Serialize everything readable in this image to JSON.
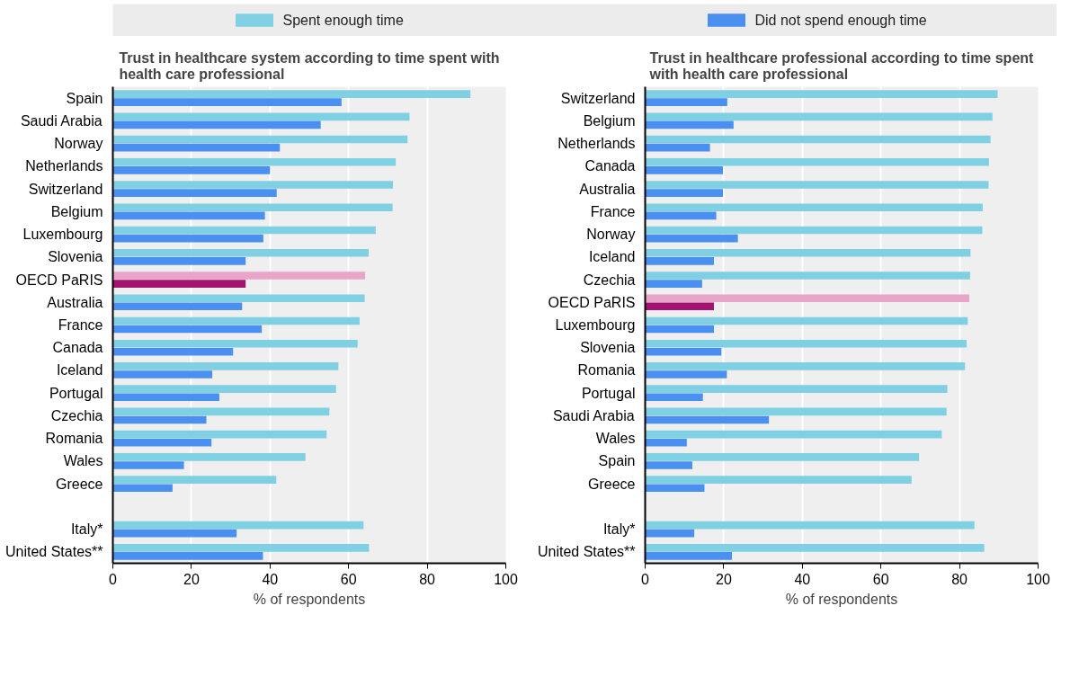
{
  "chart_data": [
    {
      "type": "bar",
      "orientation": "horizontal",
      "title": "Trust in healthcare system according to time spent with health care professional",
      "xlabel": "% of respondents",
      "xlim": [
        0,
        100
      ],
      "xticks": [
        0,
        20,
        40,
        60,
        80,
        100
      ],
      "grid": "x",
      "legend": "top",
      "categories": [
        "Spain",
        "Saudi Arabia",
        "Norway",
        "Netherlands",
        "Switzerland",
        "Belgium",
        "Luxembourg",
        "Slovenia",
        "OECD PaRIS",
        "Australia",
        "France",
        "Canada",
        "Iceland",
        "Portugal",
        "Czechia",
        "Romania",
        "Wales",
        "Greece",
        null,
        "Italy*",
        "United States**"
      ],
      "series": [
        {
          "name": "Spent enough time",
          "color": "#7fd0e3",
          "colors": [
            "#7fd0e3",
            "#7fd0e3",
            "#7fd0e3",
            "#7fd0e3",
            "#7fd0e3",
            "#7fd0e3",
            "#7fd0e3",
            "#7fd0e3",
            "#e9a5c9",
            "#7fd0e3",
            "#7fd0e3",
            "#7fd0e3",
            "#7fd0e3",
            "#7fd0e3",
            "#7fd0e3",
            "#7fd0e3",
            "#7fd0e3",
            "#7fd0e3",
            "#7fd0e3",
            "#7fd0e3",
            "#7fd0e3"
          ],
          "values": [
            91.0,
            75.5,
            75.0,
            72.0,
            71.3,
            71.2,
            66.9,
            65.1,
            64.2,
            64.1,
            62.8,
            62.3,
            57.4,
            56.8,
            55.1,
            54.4,
            49.0,
            41.6,
            null,
            63.8,
            65.2
          ]
        },
        {
          "name": "Did not spend enough time",
          "color": "#4a90f0",
          "colors": [
            "#4a90f0",
            "#4a90f0",
            "#4a90f0",
            "#4a90f0",
            "#4a90f0",
            "#4a90f0",
            "#4a90f0",
            "#4a90f0",
            "#a3136f",
            "#4a90f0",
            "#4a90f0",
            "#4a90f0",
            "#4a90f0",
            "#4a90f0",
            "#4a90f0",
            "#4a90f0",
            "#4a90f0",
            "#4a90f0",
            "#4a90f0",
            "#4a90f0",
            "#4a90f0"
          ],
          "values": [
            58.2,
            52.9,
            42.5,
            40.0,
            41.7,
            38.7,
            38.3,
            33.8,
            33.8,
            32.9,
            37.9,
            30.6,
            25.3,
            27.1,
            23.8,
            25.1,
            18.1,
            15.2,
            null,
            31.5,
            38.2
          ]
        }
      ]
    },
    {
      "type": "bar",
      "orientation": "horizontal",
      "title": "Trust in healthcare professional according to time spent with health care professional",
      "xlabel": "% of respondents",
      "xlim": [
        0,
        100
      ],
      "xticks": [
        0,
        20,
        40,
        60,
        80,
        100
      ],
      "grid": "x",
      "categories": [
        "Switzerland",
        "Belgium",
        "Netherlands",
        "Canada",
        "Australia",
        "France",
        "Norway",
        "Iceland",
        "Czechia",
        "OECD PaRIS",
        "Luxembourg",
        "Slovenia",
        "Romania",
        "Portugal",
        "Saudi Arabia",
        "Wales",
        "Spain",
        "Greece",
        null,
        "Italy*",
        "United States**"
      ],
      "series": [
        {
          "color": "#7fd0e3",
          "colors": [
            "#7fd0e3",
            "#7fd0e3",
            "#7fd0e3",
            "#7fd0e3",
            "#7fd0e3",
            "#7fd0e3",
            "#7fd0e3",
            "#7fd0e3",
            "#7fd0e3",
            "#e9a5c9",
            "#7fd0e3",
            "#7fd0e3",
            "#7fd0e3",
            "#7fd0e3",
            "#7fd0e3",
            "#7fd0e3",
            "#7fd0e3",
            "#7fd0e3",
            "#7fd0e3",
            "#7fd0e3",
            "#7fd0e3"
          ],
          "values": [
            89.7,
            88.4,
            87.9,
            87.5,
            87.4,
            85.9,
            85.8,
            82.8,
            82.7,
            82.5,
            82.1,
            81.8,
            81.4,
            76.9,
            76.7,
            75.5,
            69.7,
            67.8,
            null,
            83.8,
            86.3
          ]
        },
        {
          "color": "#4a90f0",
          "colors": [
            "#4a90f0",
            "#4a90f0",
            "#4a90f0",
            "#4a90f0",
            "#4a90f0",
            "#4a90f0",
            "#4a90f0",
            "#4a90f0",
            "#4a90f0",
            "#a3136f",
            "#4a90f0",
            "#4a90f0",
            "#4a90f0",
            "#4a90f0",
            "#4a90f0",
            "#4a90f0",
            "#4a90f0",
            "#4a90f0",
            "#4a90f0",
            "#4a90f0",
            "#4a90f0"
          ],
          "values": [
            20.9,
            22.5,
            16.5,
            19.8,
            19.8,
            18.1,
            23.6,
            17.5,
            14.5,
            17.5,
            17.5,
            19.4,
            20.8,
            14.7,
            31.5,
            10.6,
            12.0,
            15.1,
            null,
            12.5,
            22.1
          ]
        }
      ]
    }
  ]
}
